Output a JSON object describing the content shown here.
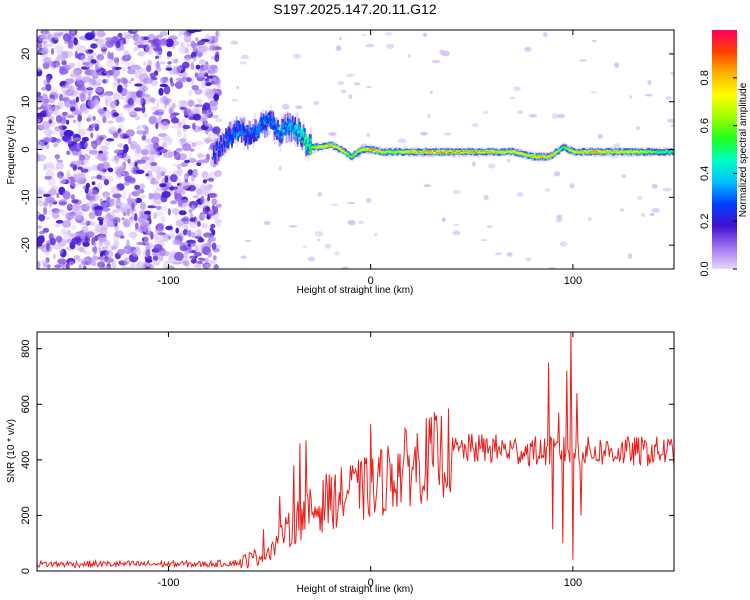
{
  "title": "S197.2025.147.20.11.G12",
  "chart_data": [
    {
      "type": "heatmap",
      "xlabel": "Height of straight line (km)",
      "ylabel": "Frequency (Hz)",
      "xlim": [
        -165,
        150
      ],
      "ylim": [
        -25,
        25
      ],
      "x_ticks": [
        -100,
        0,
        100
      ],
      "y_ticks": [
        -20,
        -10,
        0,
        10,
        20
      ],
      "colorbar": {
        "label": "Normalized spectral amplitude",
        "range": [
          0,
          1
        ],
        "ticks": [
          0.0,
          0.2,
          0.4,
          0.6,
          0.8
        ],
        "colormap": [
          "#e8d8f8",
          "#a070f0",
          "#4010d0",
          "#0040ff",
          "#00c0ff",
          "#00ffc0",
          "#20ff20",
          "#a0ff00",
          "#ffff00",
          "#ffb000",
          "#ff4000",
          "#ff0060"
        ]
      },
      "noise_region": {
        "x_range": [
          -165,
          -75
        ],
        "amplitude_range": [
          0.02,
          0.18
        ]
      },
      "ridge": [
        [
          -78,
          -1.0,
          0.25
        ],
        [
          -72,
          2.0,
          0.3
        ],
        [
          -66,
          4.0,
          0.35
        ],
        [
          -60,
          3.0,
          0.3
        ],
        [
          -55,
          5.0,
          0.35
        ],
        [
          -50,
          6.0,
          0.3
        ],
        [
          -45,
          3.5,
          0.35
        ],
        [
          -40,
          5.0,
          0.4
        ],
        [
          -35,
          3.0,
          0.45
        ],
        [
          -30,
          0.5,
          0.6
        ],
        [
          -25,
          0.5,
          0.75
        ],
        [
          -20,
          1.0,
          0.8
        ],
        [
          -15,
          0.0,
          0.75
        ],
        [
          -10,
          -1.5,
          0.6
        ],
        [
          -5,
          0.0,
          0.7
        ],
        [
          0,
          0.0,
          0.9
        ],
        [
          5,
          -0.5,
          0.75
        ],
        [
          10,
          -0.5,
          0.65
        ],
        [
          20,
          -0.5,
          0.8
        ],
        [
          30,
          -0.5,
          0.85
        ],
        [
          40,
          -0.5,
          0.85
        ],
        [
          50,
          -0.5,
          0.85
        ],
        [
          60,
          -0.5,
          0.8
        ],
        [
          70,
          -0.5,
          0.75
        ],
        [
          80,
          -1.5,
          0.8
        ],
        [
          88,
          -1.5,
          0.85
        ],
        [
          95,
          0.5,
          0.55
        ],
        [
          100,
          -0.5,
          0.75
        ],
        [
          110,
          -0.5,
          0.85
        ],
        [
          120,
          -0.5,
          0.8
        ],
        [
          130,
          -0.5,
          0.75
        ],
        [
          140,
          -0.5,
          0.6
        ],
        [
          150,
          -0.5,
          0.5
        ]
      ]
    },
    {
      "type": "line",
      "xlabel": "Height of straight line (km)",
      "ylabel": "SNR (10 * v/v)",
      "xlim": [
        -165,
        150
      ],
      "ylim": [
        0,
        860
      ],
      "x_ticks": [
        -100,
        0,
        100
      ],
      "y_ticks": [
        0,
        200,
        400,
        600,
        800
      ],
      "color": "#e8201c",
      "trend": [
        [
          -165,
          25
        ],
        [
          -120,
          25
        ],
        [
          -80,
          25
        ],
        [
          -65,
          30
        ],
        [
          -55,
          55
        ],
        [
          -50,
          80
        ],
        [
          -45,
          110
        ],
        [
          -40,
          150
        ],
        [
          -35,
          190
        ],
        [
          -30,
          210
        ],
        [
          -25,
          230
        ],
        [
          -20,
          250
        ],
        [
          -15,
          265
        ],
        [
          -10,
          280
        ],
        [
          -5,
          290
        ],
        [
          0,
          300
        ],
        [
          5,
          320
        ],
        [
          10,
          345
        ],
        [
          20,
          380
        ],
        [
          30,
          410
        ],
        [
          40,
          430
        ],
        [
          50,
          440
        ],
        [
          60,
          440
        ],
        [
          70,
          435
        ],
        [
          80,
          430
        ],
        [
          90,
          430
        ],
        [
          100,
          430
        ],
        [
          110,
          430
        ],
        [
          120,
          430
        ],
        [
          130,
          430
        ],
        [
          140,
          430
        ],
        [
          150,
          430
        ]
      ],
      "spikes": [
        [
          -53,
          150
        ],
        [
          -45,
          270
        ],
        [
          -43,
          100
        ],
        [
          -38,
          380
        ],
        [
          -35,
          460
        ],
        [
          -32,
          470
        ],
        [
          -22,
          350
        ],
        [
          -10,
          380
        ],
        [
          -5,
          390
        ],
        [
          0,
          530
        ],
        [
          2,
          210
        ],
        [
          88,
          750
        ],
        [
          90,
          150
        ],
        [
          93,
          570
        ],
        [
          95,
          100
        ],
        [
          97,
          720
        ],
        [
          99,
          860
        ],
        [
          100,
          40
        ],
        [
          102,
          640
        ],
        [
          104,
          200
        ]
      ]
    }
  ]
}
